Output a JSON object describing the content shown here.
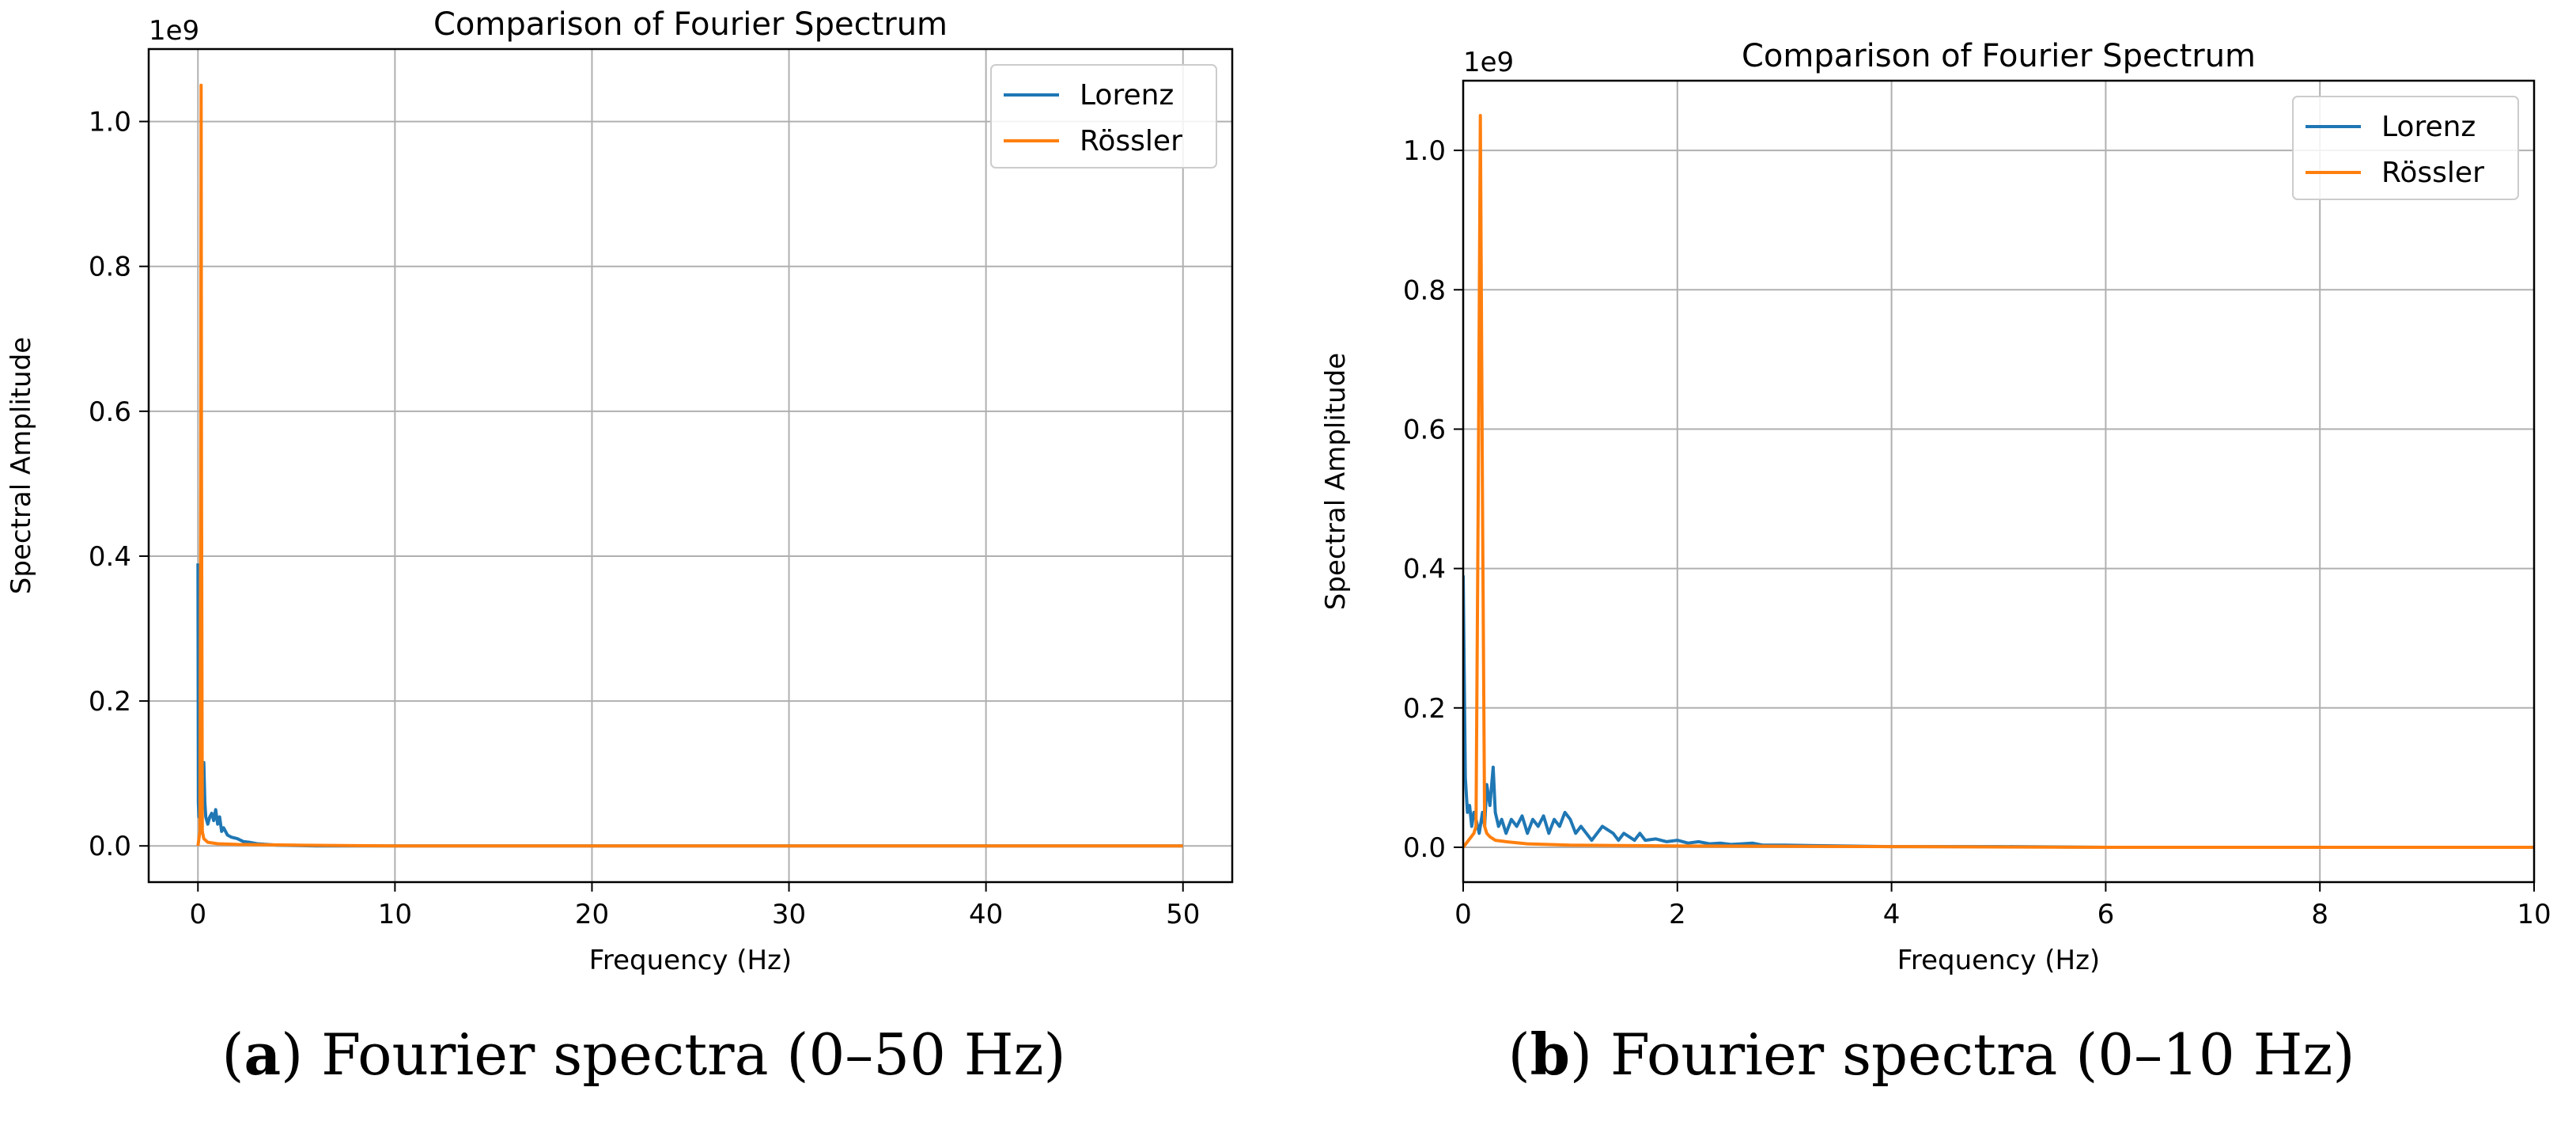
{
  "colors": {
    "lorenz": "#1f77b4",
    "rossler": "#ff7f0e",
    "grid": "#b0b0b0",
    "axis": "#000000"
  },
  "chart_data": [
    {
      "type": "line",
      "title": "Comparison of Fourier Spectrum",
      "xlabel": "Frequency (Hz)",
      "ylabel": "Spectral Amplitude",
      "y_offset_label": "1e9",
      "xlim": [
        -2.5,
        52.5
      ],
      "ylim": [
        -0.05,
        1.1
      ],
      "xticks": [
        0,
        10,
        20,
        30,
        40,
        50
      ],
      "xtick_labels": [
        "0",
        "10",
        "20",
        "30",
        "40",
        "50"
      ],
      "yticks": [
        0.0,
        0.2,
        0.4,
        0.6,
        0.8,
        1.0
      ],
      "ytick_labels": [
        "0.0",
        "0.2",
        "0.4",
        "0.6",
        "0.8",
        "1.0"
      ],
      "grid": true,
      "legend": "top-right",
      "series": [
        {
          "name": "Lorenz",
          "x": [
            0,
            0.02,
            0.05,
            0.1,
            0.15,
            0.2,
            0.25,
            0.3,
            0.35,
            0.4,
            0.5,
            0.6,
            0.7,
            0.8,
            0.9,
            1.0,
            1.1,
            1.2,
            1.3,
            1.5,
            1.7,
            2.0,
            2.3,
            2.6,
            3.0,
            4,
            6,
            10,
            20,
            30,
            40,
            50
          ],
          "y": [
            0.39,
            0.06,
            0.04,
            0.05,
            0.03,
            0.05,
            0.09,
            0.115,
            0.06,
            0.04,
            0.03,
            0.04,
            0.045,
            0.035,
            0.05,
            0.03,
            0.04,
            0.02,
            0.025,
            0.015,
            0.012,
            0.01,
            0.006,
            0.005,
            0.003,
            0.001,
            0,
            0,
            0,
            0,
            0,
            0
          ]
        },
        {
          "name": "Rössler",
          "x": [
            0,
            0.05,
            0.1,
            0.14,
            0.16,
            0.18,
            0.22,
            0.3,
            0.5,
            1.0,
            2,
            5,
            10,
            20,
            30,
            40,
            50
          ],
          "y": [
            0.0,
            0.01,
            0.02,
            0.5,
            1.05,
            0.5,
            0.02,
            0.01,
            0.005,
            0.003,
            0.002,
            0.001,
            0,
            0,
            0,
            0,
            0
          ]
        }
      ]
    },
    {
      "type": "line",
      "title": "Comparison of Fourier Spectrum",
      "xlabel": "Frequency (Hz)",
      "ylabel": "Spectral Amplitude",
      "y_offset_label": "1e9",
      "xlim": [
        0,
        10
      ],
      "ylim": [
        -0.05,
        1.1
      ],
      "xticks": [
        0,
        2,
        4,
        6,
        8,
        10
      ],
      "xtick_labels": [
        "0",
        "2",
        "4",
        "6",
        "8",
        "10"
      ],
      "yticks": [
        0.0,
        0.2,
        0.4,
        0.6,
        0.8,
        1.0
      ],
      "ytick_labels": [
        "0.0",
        "0.2",
        "0.4",
        "0.6",
        "0.8",
        "1.0"
      ],
      "grid": true,
      "legend": "top-right",
      "series": [
        {
          "name": "Lorenz",
          "x": [
            0,
            0.02,
            0.04,
            0.06,
            0.08,
            0.1,
            0.12,
            0.15,
            0.18,
            0.2,
            0.22,
            0.25,
            0.28,
            0.3,
            0.33,
            0.36,
            0.4,
            0.45,
            0.5,
            0.55,
            0.6,
            0.65,
            0.7,
            0.75,
            0.8,
            0.85,
            0.9,
            0.95,
            1.0,
            1.05,
            1.1,
            1.15,
            1.2,
            1.25,
            1.3,
            1.35,
            1.4,
            1.45,
            1.5,
            1.55,
            1.6,
            1.65,
            1.7,
            1.8,
            1.9,
            2.0,
            2.1,
            2.2,
            2.3,
            2.4,
            2.5,
            2.6,
            2.7,
            2.8,
            3.0,
            3.5,
            4.0,
            5,
            6,
            7,
            8,
            9,
            10
          ],
          "y": [
            0.39,
            0.1,
            0.05,
            0.06,
            0.03,
            0.05,
            0.04,
            0.02,
            0.05,
            0.03,
            0.09,
            0.06,
            0.115,
            0.05,
            0.03,
            0.04,
            0.02,
            0.04,
            0.03,
            0.045,
            0.02,
            0.04,
            0.03,
            0.045,
            0.02,
            0.04,
            0.03,
            0.05,
            0.04,
            0.02,
            0.03,
            0.02,
            0.01,
            0.02,
            0.03,
            0.025,
            0.02,
            0.01,
            0.02,
            0.015,
            0.01,
            0.02,
            0.01,
            0.012,
            0.008,
            0.01,
            0.006,
            0.008,
            0.005,
            0.006,
            0.004,
            0.005,
            0.006,
            0.003,
            0.003,
            0.002,
            0.001,
            0.001,
            0,
            0,
            0,
            0,
            0
          ]
        },
        {
          "name": "Rössler",
          "x": [
            0,
            0.05,
            0.1,
            0.12,
            0.14,
            0.16,
            0.18,
            0.2,
            0.22,
            0.25,
            0.3,
            0.4,
            0.6,
            1.0,
            2.0,
            4.0,
            6,
            8,
            10
          ],
          "y": [
            0.0,
            0.01,
            0.02,
            0.03,
            0.5,
            1.05,
            0.5,
            0.03,
            0.02,
            0.015,
            0.01,
            0.008,
            0.005,
            0.003,
            0.002,
            0.001,
            0,
            0,
            0
          ]
        }
      ]
    }
  ],
  "captions": [
    {
      "letter": "a",
      "text": "Fourier spectra (0–50 Hz)"
    },
    {
      "letter": "b",
      "text": "Fourier spectra (0–10 Hz)"
    }
  ]
}
